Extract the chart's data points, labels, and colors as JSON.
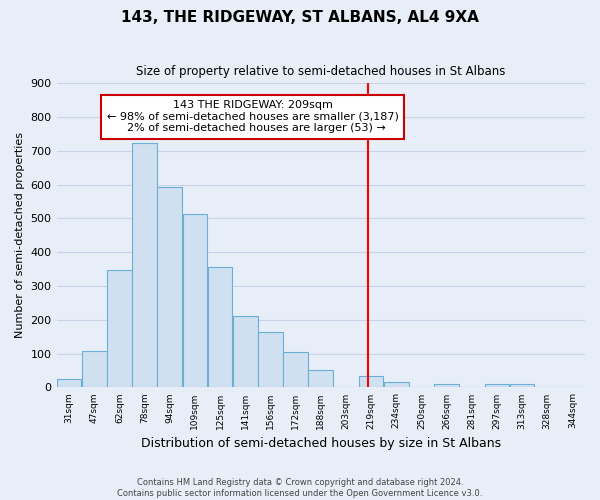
{
  "title": "143, THE RIDGEWAY, ST ALBANS, AL4 9XA",
  "subtitle": "Size of property relative to semi-detached houses in St Albans",
  "xlabel": "Distribution of semi-detached houses by size in St Albans",
  "ylabel": "Number of semi-detached properties",
  "bin_labels": [
    "31sqm",
    "47sqm",
    "62sqm",
    "78sqm",
    "94sqm",
    "109sqm",
    "125sqm",
    "141sqm",
    "156sqm",
    "172sqm",
    "188sqm",
    "203sqm",
    "219sqm",
    "234sqm",
    "250sqm",
    "266sqm",
    "281sqm",
    "297sqm",
    "313sqm",
    "328sqm",
    "344sqm"
  ],
  "bar_heights": [
    25,
    108,
    348,
    722,
    594,
    514,
    356,
    210,
    165,
    105,
    52,
    0,
    33,
    15,
    0,
    10,
    0,
    10,
    10,
    0,
    0
  ],
  "bar_color": "#cfe0f0",
  "bar_edge_color": "#6baed6",
  "pct_smaller": 98,
  "n_smaller": 3187,
  "pct_larger": 2,
  "n_larger": 53,
  "vline_color": "red",
  "ylim": [
    0,
    900
  ],
  "yticks": [
    0,
    100,
    200,
    300,
    400,
    500,
    600,
    700,
    800,
    900
  ],
  "footer_line1": "Contains HM Land Registry data © Crown copyright and database right 2024.",
  "footer_line2": "Contains public sector information licensed under the Open Government Licence v3.0.",
  "background_color": "#e8eef8",
  "grid_color": "#c8d4e8",
  "annotation_box_color": "white",
  "annotation_edge_color": "#cc0000"
}
